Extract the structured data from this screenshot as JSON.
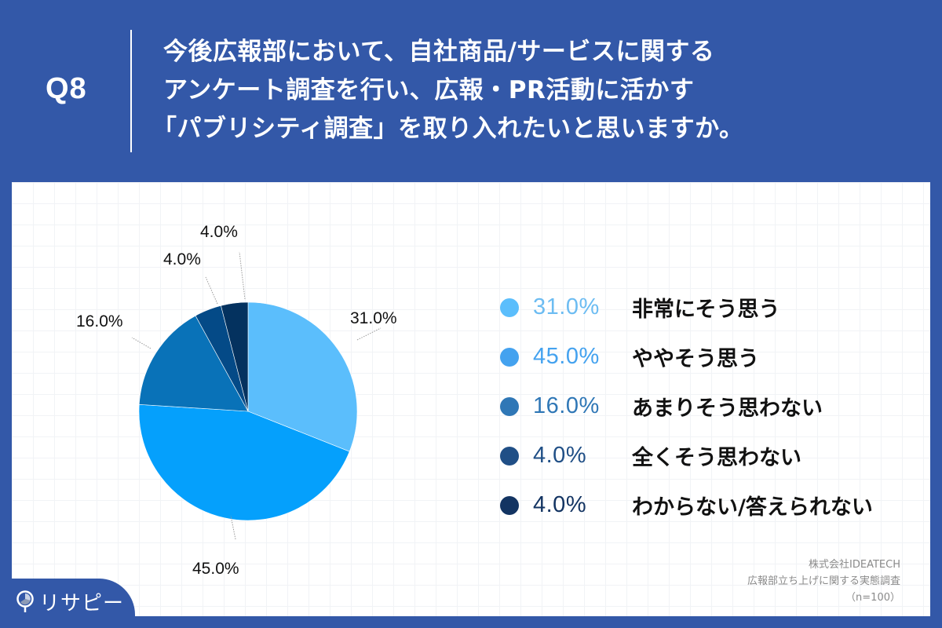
{
  "header": {
    "question_number": "Q8",
    "title_lines": [
      "今後広報部において、自社商品/サービスに関する",
      "アンケート調査を行い、広報・PR活動に活かす",
      "「パブリシティ調査」を取り入れたいと思いますか。"
    ]
  },
  "colors": {
    "background": "#3358a8",
    "slice_1": "#5bbefc",
    "slice_2": "#05a0fc",
    "slice_3": "#0972b8",
    "slice_4": "#044a87",
    "slice_5": "#04325f",
    "legend_pct_1": "#6cbcf2",
    "legend_pct_2": "#44a2ef",
    "legend_pct_3": "#2f77b6",
    "legend_pct_4": "#204f86",
    "legend_pct_5": "#133462"
  },
  "pie_labels": {
    "s1": "31.0%",
    "s2": "45.0%",
    "s3": "16.0%",
    "s4": "4.0%",
    "s5": "4.0%"
  },
  "legend": [
    {
      "pct": "31.0%",
      "label": "非常にそう思う"
    },
    {
      "pct": "45.0%",
      "label": "ややそう思う"
    },
    {
      "pct": "16.0%",
      "label": "あまりそう思わない"
    },
    {
      "pct": "4.0%",
      "label": "全くそう思わない"
    },
    {
      "pct": "4.0%",
      "label": "わからない/答えられない"
    }
  ],
  "source": {
    "company": "株式会社IDEATECH",
    "survey": "広報部立ち上げに関する実態調査",
    "sample": "（n=100）"
  },
  "brand": {
    "name": "リサピー"
  },
  "chart_data": {
    "type": "pie",
    "title": "今後広報部において、自社商品/サービスに関するアンケート調査を行い、広報・PR活動に活かす「パブリシティ調査」を取り入れたいと思いますか。",
    "categories": [
      "非常にそう思う",
      "ややそう思う",
      "あまりそう思わない",
      "全くそう思わない",
      "わからない/答えられない"
    ],
    "values": [
      31.0,
      45.0,
      16.0,
      4.0,
      4.0
    ],
    "unit": "%",
    "colors": [
      "#5bbefc",
      "#05a0fc",
      "#0972b8",
      "#044a87",
      "#04325f"
    ],
    "start_angle": "12 o'clock, clockwise",
    "legend_position": "right",
    "sample_size": "n=100",
    "source": "株式会社IDEATECH 広報部立ち上げに関する実態調査"
  }
}
